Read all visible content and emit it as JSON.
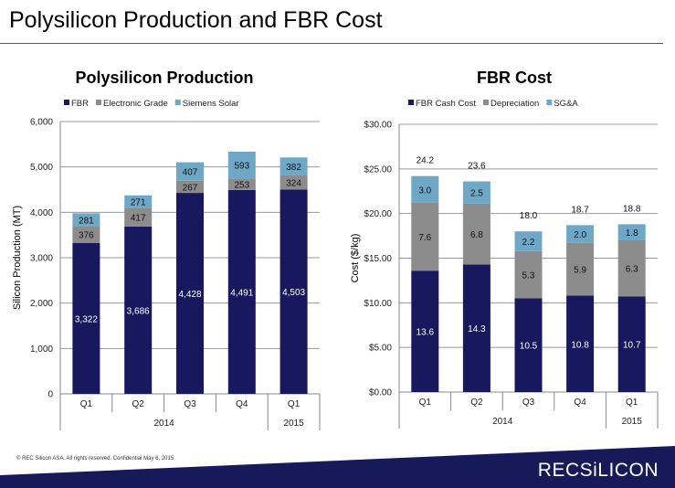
{
  "slide": {
    "title": "Polysilicon Production and FBR Cost",
    "footer": "© REC Silicon ASA. All rights reserved. Confidential  May 6, 2015",
    "logo": "RECSiLICON"
  },
  "colors": {
    "navy": "#18185e",
    "gray": "#8c8c8c",
    "lightblue": "#6fa8c6",
    "footer_bg": "#161a58"
  },
  "chart_data": [
    {
      "type": "bar",
      "stacked": true,
      "title": "Polysilicon Production",
      "ylabel": "Silicon Production (MT)",
      "ylim": [
        0,
        6000
      ],
      "yticks": [
        0,
        1000,
        2000,
        3000,
        4000,
        5000,
        6000
      ],
      "ytick_labels": [
        "0",
        "1,000",
        "2,000",
        "3,000",
        "4,000",
        "5,000",
        "6,000"
      ],
      "categories": [
        "Q1",
        "Q2",
        "Q3",
        "Q4",
        "Q1"
      ],
      "groups": [
        {
          "label": "2014",
          "count": 4
        },
        {
          "label": "2015",
          "count": 1
        }
      ],
      "legend": "top",
      "grid": true,
      "series": [
        {
          "name": "FBR",
          "color": "#18185e",
          "values": [
            3322,
            3686,
            4428,
            4491,
            4503
          ],
          "labels": [
            "3,322",
            "3,686",
            "4,428",
            "4,491",
            "4,503"
          ]
        },
        {
          "name": "Electronic Grade",
          "color": "#8c8c8c",
          "values": [
            376,
            417,
            267,
            253,
            324
          ],
          "labels": [
            "376",
            "417",
            "267",
            "253",
            "324"
          ]
        },
        {
          "name": "Siemens Solar",
          "color": "#6fa8c6",
          "values": [
            281,
            271,
            407,
            593,
            382
          ],
          "labels": [
            "281",
            "271",
            "407",
            "593",
            "382"
          ]
        }
      ]
    },
    {
      "type": "bar",
      "stacked": true,
      "title": "FBR Cost",
      "ylabel": "Cost ($/kg)",
      "ylim": [
        0,
        30
      ],
      "yticks": [
        0,
        5,
        10,
        15,
        20,
        25,
        30
      ],
      "ytick_labels": [
        "$0.00",
        "$5.00",
        "$10.00",
        "$15.00",
        "$20.00",
        "$25.00",
        "$30.00"
      ],
      "categories": [
        "Q1",
        "Q2",
        "Q3",
        "Q4",
        "Q1"
      ],
      "groups": [
        {
          "label": "2014",
          "count": 4
        },
        {
          "label": "2015",
          "count": 1
        }
      ],
      "legend": "top",
      "grid": true,
      "totals": [
        "24.2",
        "23.6",
        "18.0",
        "18.7",
        "18.8"
      ],
      "series": [
        {
          "name": "FBR Cash Cost",
          "color": "#18185e",
          "values": [
            13.6,
            14.3,
            10.5,
            10.8,
            10.7
          ],
          "labels": [
            "13.6",
            "14.3",
            "10.5",
            "10.8",
            "10.7"
          ]
        },
        {
          "name": "Depreciation",
          "color": "#8c8c8c",
          "values": [
            7.6,
            6.8,
            5.3,
            5.9,
            6.3
          ],
          "labels": [
            "7.6",
            "6.8",
            "5.3",
            "5.9",
            "6.3"
          ]
        },
        {
          "name": "SG&A",
          "color": "#6fa8c6",
          "values": [
            3.0,
            2.5,
            2.2,
            2.0,
            1.8
          ],
          "labels": [
            "3.0",
            "2.5",
            "2.2",
            "2.0",
            "1.8"
          ]
        }
      ]
    }
  ]
}
